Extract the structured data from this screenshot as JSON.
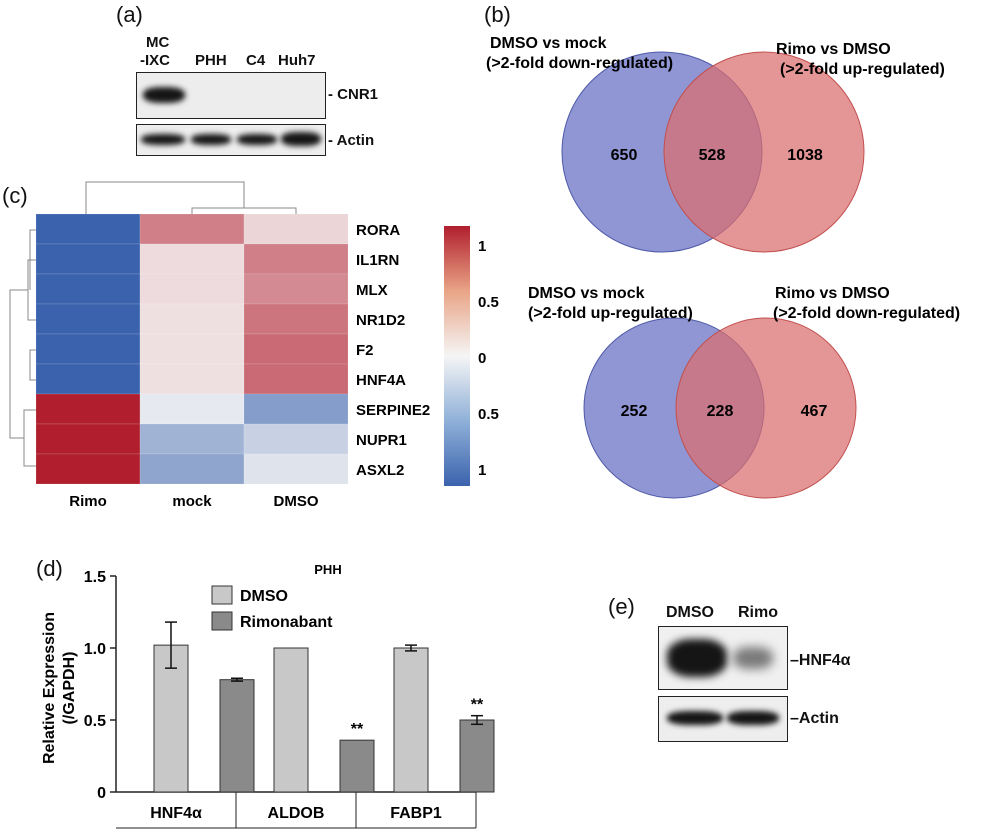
{
  "panels": {
    "a": "(a)",
    "b": "(b)",
    "c": "(c)",
    "d": "(d)",
    "e": "(e)"
  },
  "panel_a": {
    "lanes": [
      "MC\n-IXC",
      "PHH",
      "C4",
      "Huh7"
    ],
    "lane_mc_line1": "MC",
    "lane_mc_line2": "-IXC",
    "lane_phh": "PHH",
    "lane_c4": "C4",
    "lane_huh7": "Huh7",
    "band_top": "- CNR1",
    "band_bottom": "- Actin"
  },
  "panel_e": {
    "lane_dmso": "DMSO",
    "lane_rimo": "Rimo",
    "band_top": "–HNF4α",
    "band_bottom": "–Actin"
  },
  "chart_data": [
    {
      "type": "venn",
      "sets": [
        {
          "label_line1": "DMSO vs mock",
          "label_line2": "(>2-fold down-regulated)",
          "only": 650,
          "color": "#6f79c6"
        },
        {
          "label_line1": "Rimo vs DMSO",
          "label_line2": "(>2-fold up-regulated)",
          "only": 1038,
          "color": "#d96d6d"
        }
      ],
      "intersection": 528
    },
    {
      "type": "venn",
      "sets": [
        {
          "label_line1": "DMSO vs mock",
          "label_line2": "(>2-fold up-regulated)",
          "only": 252,
          "color": "#6f79c6"
        },
        {
          "label_line1": "Rimo vs DMSO",
          "label_line2": "(>2-fold down-regulated)",
          "only": 467,
          "color": "#d96d6d"
        }
      ],
      "intersection": 228
    },
    {
      "type": "heatmap",
      "columns": [
        "Rimo",
        "mock",
        "DMSO"
      ],
      "rows": [
        "RORA",
        "IL1RN",
        "MLX",
        "NR1D2",
        "F2",
        "HNF4A",
        "SERPINE2",
        "NUPR1",
        "ASXL2"
      ],
      "values": [
        [
          -1.0,
          0.55,
          0.15
        ],
        [
          -1.0,
          0.12,
          0.55
        ],
        [
          -1.0,
          0.12,
          0.5
        ],
        [
          -1.0,
          0.1,
          0.6
        ],
        [
          -1.0,
          0.1,
          0.65
        ],
        [
          -1.0,
          0.1,
          0.65
        ],
        [
          1.0,
          -0.08,
          -0.6
        ],
        [
          1.0,
          -0.45,
          -0.25
        ],
        [
          1.0,
          -0.55,
          -0.12
        ]
      ],
      "colorbar_ticks": [
        "1",
        "0.5",
        "0",
        "0.5",
        "1"
      ],
      "colorbar_range": [
        -1,
        1
      ],
      "colors": {
        "low": "#3b63ad",
        "mid": "#f5f5f5",
        "high": "#b11f2e"
      }
    },
    {
      "type": "bar",
      "title": "PHH",
      "ylabel_line1": "Relative Expression",
      "ylabel_line2": "(/GAPDH)",
      "categories": [
        "HNF4α",
        "ALDOB",
        "FABP1"
      ],
      "ylim": [
        0,
        1.5
      ],
      "yticks": [
        "0",
        "0.5",
        "1.0",
        "1.5"
      ],
      "series": [
        {
          "name": "DMSO",
          "values": [
            1.02,
            1.0,
            1.0
          ],
          "errors": [
            0.16,
            0.0,
            0.02
          ],
          "color": "#c8c8c8"
        },
        {
          "name": "Rimonabant",
          "values": [
            0.78,
            0.36,
            0.5
          ],
          "errors": [
            0.01,
            0.0,
            0.03
          ],
          "color": "#8a8a8a"
        }
      ],
      "annotations": [
        "",
        "**",
        "**"
      ]
    }
  ]
}
